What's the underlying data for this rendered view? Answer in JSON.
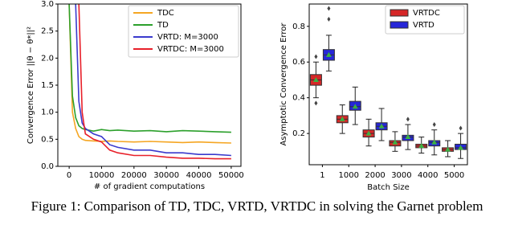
{
  "chart_data": [
    {
      "type": "line",
      "ylabel": "Convergence Error ||θ − θ*||²",
      "xlabel": "# of gradient computations",
      "x": [
        0,
        1000,
        2000,
        3000,
        4000,
        5000,
        7500,
        10000,
        12500,
        15000,
        20000,
        25000,
        30000,
        35000,
        40000,
        45000,
        50000
      ],
      "series": [
        {
          "name": "TDC",
          "color": "#f5a623",
          "values": [
            3.0,
            1.0,
            0.7,
            0.55,
            0.5,
            0.48,
            0.47,
            0.46,
            0.47,
            0.46,
            0.45,
            0.46,
            0.45,
            0.44,
            0.45,
            0.44,
            0.43
          ]
        },
        {
          "name": "TD",
          "color": "#2ca02c",
          "values": [
            3.0,
            1.3,
            0.9,
            0.75,
            0.7,
            0.68,
            0.65,
            0.68,
            0.66,
            0.67,
            0.65,
            0.66,
            0.64,
            0.66,
            0.65,
            0.64,
            0.63
          ]
        },
        {
          "name": "VRTD: M=3000",
          "color": "#3a3acd",
          "values": [
            null,
            null,
            3.0,
            1.2,
            0.8,
            0.7,
            0.6,
            0.55,
            0.4,
            0.35,
            0.3,
            0.3,
            0.25,
            0.25,
            0.22,
            0.22,
            0.2
          ]
        },
        {
          "name": "VRTDC: M=3000",
          "color": "#e8202a",
          "values": [
            null,
            null,
            null,
            3.0,
            1.0,
            0.6,
            0.5,
            0.45,
            0.3,
            0.25,
            0.2,
            0.2,
            0.17,
            0.15,
            0.15,
            0.14,
            0.14
          ]
        }
      ],
      "xlim": [
        -3500,
        53000
      ],
      "ylim": [
        0,
        3.0
      ],
      "xticks": [
        0,
        10000,
        20000,
        30000,
        40000,
        50000
      ],
      "yticks": [
        {
          "value": 0,
          "label": "0.0"
        },
        {
          "value": 0.5,
          "label": "0.5"
        },
        {
          "value": 1,
          "label": "1.0"
        },
        {
          "value": 1.5,
          "label": "1.5"
        },
        {
          "value": 2,
          "label": "2.0"
        },
        {
          "value": 2.5,
          "label": "2.5"
        },
        {
          "value": 3,
          "label": "3.0"
        }
      ]
    },
    {
      "type": "box",
      "ylabel": "Asymptotic Convergence Error",
      "xlabel": "Batch Size",
      "categories": [
        "1",
        "1000",
        "2000",
        "3000",
        "4000",
        "5000"
      ],
      "series": [
        {
          "name": "VRTDC",
          "color": "#d62728",
          "min": [
            0.4,
            0.2,
            0.13,
            0.1,
            0.09,
            0.07
          ],
          "q1": [
            0.47,
            0.26,
            0.18,
            0.13,
            0.12,
            0.1
          ],
          "median": [
            0.5,
            0.28,
            0.2,
            0.15,
            0.13,
            0.11
          ],
          "q3": [
            0.53,
            0.3,
            0.22,
            0.16,
            0.14,
            0.12
          ],
          "max": [
            0.6,
            0.36,
            0.28,
            0.21,
            0.18,
            0.16
          ],
          "mean": [
            0.5,
            0.28,
            0.2,
            0.15,
            0.13,
            0.11
          ],
          "outliers": [
            [
              0.37,
              0.63
            ],
            [],
            [],
            [],
            [],
            []
          ]
        },
        {
          "name": "VRTD",
          "color": "#2626d8",
          "min": [
            0.55,
            0.25,
            0.16,
            0.11,
            0.08,
            0.06
          ],
          "q1": [
            0.61,
            0.33,
            0.22,
            0.16,
            0.13,
            0.11
          ],
          "median": [
            0.64,
            0.35,
            0.24,
            0.18,
            0.15,
            0.12
          ],
          "q3": [
            0.67,
            0.38,
            0.26,
            0.19,
            0.16,
            0.14
          ],
          "max": [
            0.75,
            0.46,
            0.34,
            0.25,
            0.22,
            0.2
          ],
          "mean": [
            0.64,
            0.35,
            0.24,
            0.18,
            0.15,
            0.12
          ],
          "outliers": [
            [
              0.84,
              0.9
            ],
            [],
            [],
            [
              0.28
            ],
            [
              0.25
            ],
            [
              0.23
            ]
          ]
        }
      ],
      "ylim": [
        0.025,
        0.925
      ],
      "yticks": [
        0.2,
        0.4,
        0.6,
        0.8
      ]
    }
  ],
  "caption": "Figure 1: Comparison of TD, TDC, VRTD, VRTDC in solving the Garnet problem"
}
